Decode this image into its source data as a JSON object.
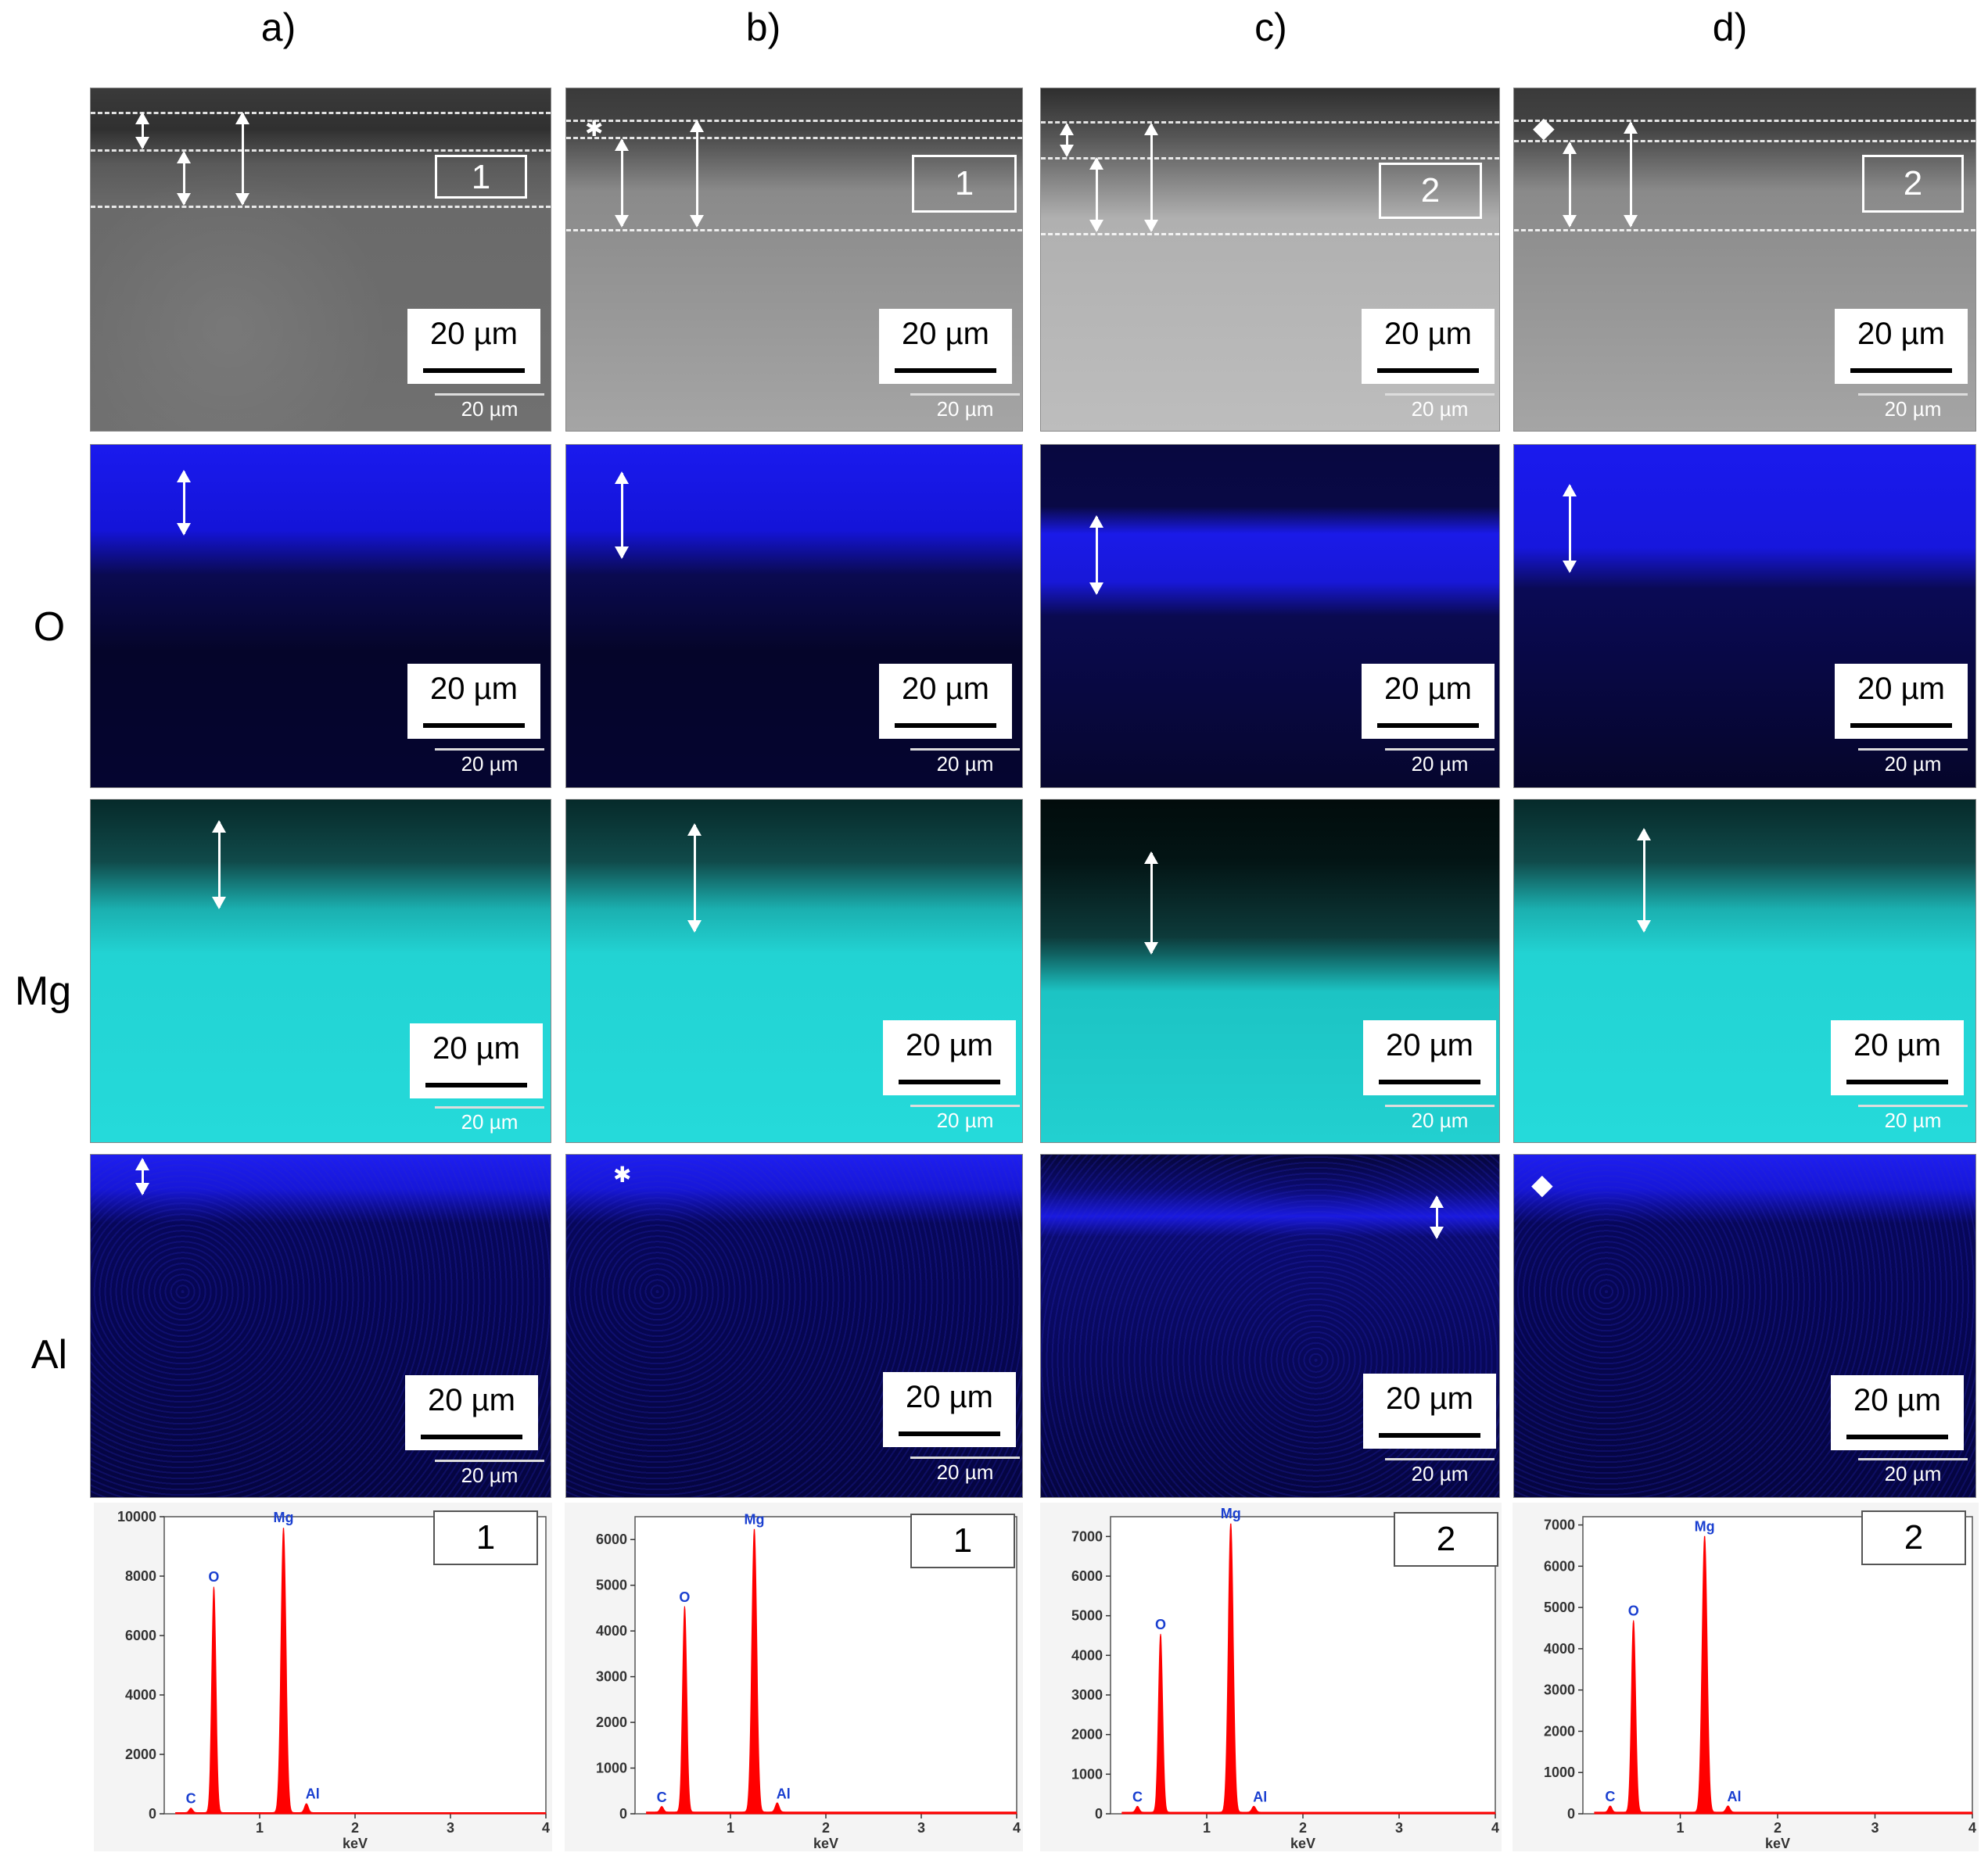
{
  "columns": [
    {
      "label": "a)",
      "spectrum_id": "1",
      "box_label": "1"
    },
    {
      "label": "b)",
      "spectrum_id": "1",
      "box_label": "1"
    },
    {
      "label": "c)",
      "spectrum_id": "2",
      "box_label": "2"
    },
    {
      "label": "d)",
      "spectrum_id": "2",
      "box_label": "2"
    }
  ],
  "rows": {
    "o": "O",
    "mg": "Mg",
    "al": "Al"
  },
  "scale": {
    "label": "20 µm",
    "small_label": "20 µm"
  },
  "markers": {
    "b": "✱",
    "d": "◆"
  },
  "chart_data": [
    {
      "type": "line",
      "panel": "a)",
      "xlabel": "keV",
      "xlim": [
        0,
        4
      ],
      "ylim": [
        0,
        10000
      ],
      "yticks": [
        0,
        2000,
        4000,
        6000,
        8000,
        10000
      ],
      "xticks": [
        1,
        2,
        3,
        4
      ],
      "series": [
        {
          "color": "#ff0000"
        }
      ],
      "peaks": [
        {
          "element": "C",
          "energy": 0.28,
          "counts": 150
        },
        {
          "element": "O",
          "energy": 0.52,
          "counts": 7600
        },
        {
          "element": "Mg",
          "energy": 1.25,
          "counts": 9600
        },
        {
          "element": "Al",
          "energy": 1.49,
          "counts": 300
        }
      ]
    },
    {
      "type": "line",
      "panel": "b)",
      "xlabel": "keV",
      "xlim": [
        0,
        4
      ],
      "ylim": [
        0,
        6500
      ],
      "yticks": [
        0,
        1000,
        2000,
        3000,
        4000,
        5000,
        6000
      ],
      "xticks": [
        1,
        2,
        3,
        4
      ],
      "series": [
        {
          "color": "#ff0000"
        }
      ],
      "peaks": [
        {
          "element": "C",
          "energy": 0.28,
          "counts": 120
        },
        {
          "element": "O",
          "energy": 0.52,
          "counts": 4500
        },
        {
          "element": "Mg",
          "energy": 1.25,
          "counts": 6200
        },
        {
          "element": "Al",
          "energy": 1.49,
          "counts": 200
        }
      ]
    },
    {
      "type": "line",
      "panel": "c)",
      "xlabel": "keV",
      "xlim": [
        0,
        4
      ],
      "ylim": [
        0,
        7500
      ],
      "yticks": [
        0,
        1000,
        2000,
        3000,
        4000,
        5000,
        6000,
        7000
      ],
      "xticks": [
        1,
        2,
        3,
        4
      ],
      "series": [
        {
          "color": "#ff0000"
        }
      ],
      "peaks": [
        {
          "element": "C",
          "energy": 0.28,
          "counts": 150
        },
        {
          "element": "O",
          "energy": 0.52,
          "counts": 4500
        },
        {
          "element": "Mg",
          "energy": 1.25,
          "counts": 7300
        },
        {
          "element": "Al",
          "energy": 1.49,
          "counts": 150
        }
      ]
    },
    {
      "type": "line",
      "panel": "d)",
      "xlabel": "keV",
      "xlim": [
        0,
        4
      ],
      "ylim": [
        0,
        7200
      ],
      "yticks": [
        0,
        1000,
        2000,
        3000,
        4000,
        5000,
        6000,
        7000
      ],
      "xticks": [
        1,
        2,
        3,
        4
      ],
      "series": [
        {
          "color": "#ff0000"
        }
      ],
      "peaks": [
        {
          "element": "C",
          "energy": 0.28,
          "counts": 150
        },
        {
          "element": "O",
          "energy": 0.52,
          "counts": 4650
        },
        {
          "element": "Mg",
          "energy": 1.25,
          "counts": 6700
        },
        {
          "element": "Al",
          "energy": 1.49,
          "counts": 150
        }
      ]
    }
  ]
}
